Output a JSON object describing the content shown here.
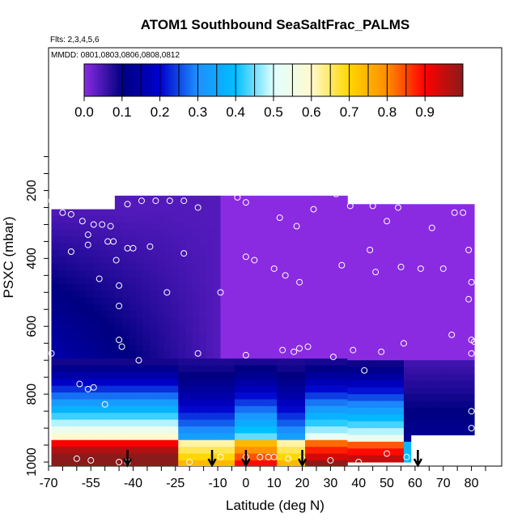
{
  "chart_data": {
    "type": "heatmap",
    "title": "ATOM1 Southbound SeaSaltFrac_PALMS",
    "subtitle_flights": "Flts: 2,3,4,5,6",
    "subtitle_dates": "MMDD: 0801,0803,0806,0808,0812",
    "xlabel": "Latitude (deg N)",
    "ylabel": "PSXC (mbar)",
    "xlim": [
      -70,
      85
    ],
    "ylim": [
      1000,
      0
    ],
    "x_ticks": [
      -70,
      -55,
      -40,
      -25,
      -10,
      0,
      10,
      20,
      30,
      40,
      50,
      60,
      70,
      80
    ],
    "x_tick_labels": [
      "-70",
      "-55",
      "-40",
      "-25",
      "-10",
      "0",
      "10",
      "20",
      "30",
      "40",
      "50",
      "60",
      "70",
      "80"
    ],
    "y_ticks": [
      200,
      400,
      600,
      800,
      1000
    ],
    "y_tick_labels": [
      "200",
      "400",
      "600",
      "800",
      "1000"
    ],
    "colorbar": {
      "range": [
        0,
        1
      ],
      "ticks": [
        0.0,
        0.1,
        0.2,
        0.3,
        0.4,
        0.5,
        0.6,
        0.7,
        0.8,
        0.9
      ],
      "tick_labels": [
        "0.0",
        "0.1",
        "0.2",
        "0.3",
        "0.4",
        "0.5",
        "0.6",
        "0.7",
        "0.8",
        "0.9"
      ],
      "colors": [
        "#8a2be2",
        "#000080",
        "#0000cd",
        "#1e90ff",
        "#00bfff",
        "#e0ffff",
        "#fffacd",
        "#ffd700",
        "#ff8c00",
        "#ff0000",
        "#8b1a1a"
      ]
    },
    "profile_markers_lat": [
      -42,
      -12,
      0,
      20,
      61
    ],
    "grid": false,
    "sample_points": [
      [
        -69,
        230
      ],
      [
        -68,
        230
      ],
      [
        -65,
        265
      ],
      [
        -62,
        270
      ],
      [
        -58,
        290
      ],
      [
        -56,
        330
      ],
      [
        -54,
        300
      ],
      [
        -51,
        300
      ],
      [
        -48,
        305
      ],
      [
        -45,
        200
      ],
      [
        -42,
        240
      ],
      [
        -37,
        230
      ],
      [
        -32,
        230
      ],
      [
        -27,
        230
      ],
      [
        -22,
        230
      ],
      [
        -17,
        250
      ],
      [
        -3,
        220
      ],
      [
        0,
        235
      ],
      [
        -62,
        380
      ],
      [
        -56,
        360
      ],
      [
        -49,
        350
      ],
      [
        -47,
        350
      ],
      [
        -42,
        370
      ],
      [
        -40,
        370
      ],
      [
        -34,
        365
      ],
      [
        -22,
        385
      ],
      [
        0,
        395
      ],
      [
        3,
        405
      ],
      [
        -46,
        405
      ],
      [
        -45,
        480
      ],
      [
        -45,
        540
      ],
      [
        -52,
        460
      ],
      [
        -28,
        500
      ],
      [
        -9,
        500
      ],
      [
        19,
        470
      ],
      [
        14,
        450
      ],
      [
        10,
        430
      ],
      [
        12,
        280
      ],
      [
        18,
        305
      ],
      [
        24,
        255
      ],
      [
        29,
        185
      ],
      [
        32,
        210
      ],
      [
        34,
        420
      ],
      [
        37,
        245
      ],
      [
        45,
        245
      ],
      [
        44,
        375
      ],
      [
        46,
        440
      ],
      [
        50,
        290
      ],
      [
        54,
        250
      ],
      [
        55,
        425
      ],
      [
        62,
        430
      ],
      [
        66,
        310
      ],
      [
        68,
        220
      ],
      [
        70,
        430
      ],
      [
        74,
        265
      ],
      [
        77,
        265
      ],
      [
        79,
        375
      ],
      [
        80,
        470
      ],
      [
        79,
        520
      ],
      [
        73,
        625
      ],
      [
        80,
        640
      ],
      [
        80,
        680
      ],
      [
        81,
        645
      ],
      [
        -69,
        680
      ],
      [
        -45,
        640
      ],
      [
        -44,
        660
      ],
      [
        -38,
        700
      ],
      [
        -17,
        680
      ],
      [
        0,
        685
      ],
      [
        13,
        670
      ],
      [
        17,
        675
      ],
      [
        19,
        665
      ],
      [
        22,
        660
      ],
      [
        31,
        690
      ],
      [
        38,
        670
      ],
      [
        42,
        730
      ],
      [
        48,
        675
      ],
      [
        56,
        650
      ],
      [
        -59,
        770
      ],
      [
        -54,
        780
      ],
      [
        -50,
        830
      ],
      [
        -56,
        785
      ],
      [
        80,
        850
      ],
      [
        80,
        900
      ],
      [
        -60,
        990
      ],
      [
        -55,
        995
      ],
      [
        -45,
        1000
      ],
      [
        -42,
        1000
      ],
      [
        -20,
        1000
      ],
      [
        -9,
        985
      ],
      [
        0,
        985
      ],
      [
        5,
        985
      ],
      [
        8,
        985
      ],
      [
        10,
        985
      ],
      [
        15,
        990
      ],
      [
        20,
        990
      ],
      [
        30,
        995
      ],
      [
        40,
        1000
      ],
      [
        50,
        975
      ],
      [
        57,
        985
      ],
      [
        60,
        990
      ]
    ]
  }
}
